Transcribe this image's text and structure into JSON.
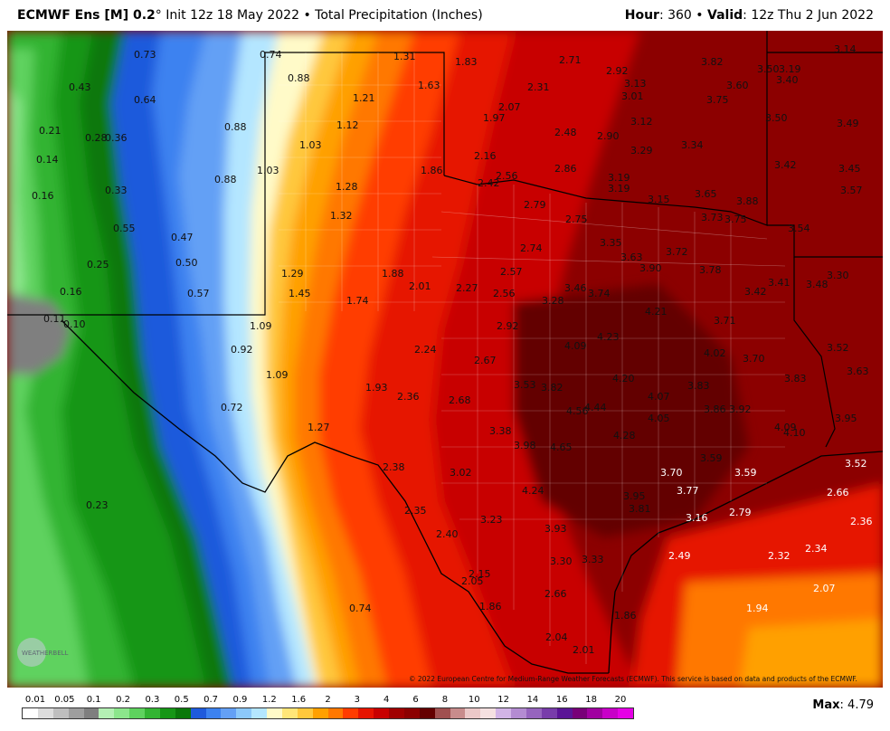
{
  "header": {
    "model": "ECMWF Ens [M] 0.2",
    "degree": "°",
    "init": "Init 12z 18 May 2022",
    "bullet": "•",
    "product": "Total Precipitation (Inches)",
    "hour_label": "Hour",
    "hour_value": ": 360",
    "valid_label": "Valid",
    "valid_value": ": 12z Thu 2 Jun 2022"
  },
  "copyright": "© 2022 European Centre for Medium-Range Weather Forecasts (ECMWF). This service is based on data and products of the ECMWF.",
  "logo_text": "WEATHERBELL",
  "legend": {
    "labels": [
      "0.01",
      "0.05",
      "0.1",
      "0.2",
      "0.3",
      "0.5",
      "0.7",
      "0.9",
      "1.2",
      "1.6",
      "2",
      "3",
      "4",
      "6",
      "8",
      "10",
      "12",
      "14",
      "16",
      "18",
      "20"
    ],
    "colors": [
      "#ffffff",
      "#dcdcdc",
      "#bebebe",
      "#9e9e9e",
      "#7f7f7f",
      "#b4f0b4",
      "#8ce68c",
      "#5ed25e",
      "#32b432",
      "#169616",
      "#0a780a",
      "#1e5adc",
      "#3c82f0",
      "#64a0f5",
      "#8cc8fa",
      "#b4e6ff",
      "#fffac8",
      "#ffe678",
      "#ffc83c",
      "#ffa000",
      "#ff7800",
      "#ff3c00",
      "#e61400",
      "#c80000",
      "#a00000",
      "#8c0000",
      "#640000",
      "#a05050",
      "#c88c8c",
      "#ebc8c8",
      "#f5e1e1",
      "#d2b4e6",
      "#b48cd2",
      "#9664be",
      "#783caa",
      "#5a1496",
      "#780078",
      "#a000a0",
      "#c800c8",
      "#e600e6"
    ],
    "max_label": "Max",
    "max_value": ": 4.79"
  },
  "map_values": [
    {
      "t": "0.73"
    },
    {
      "t": "0.74"
    },
    {
      "t": "1.31"
    },
    {
      "t": "1.83"
    },
    {
      "t": "2.71"
    },
    {
      "t": "3.82"
    },
    {
      "t": "3.14"
    },
    {
      "t": "0.43"
    },
    {
      "t": "0.64"
    },
    {
      "t": "0.88"
    },
    {
      "t": "1.21"
    },
    {
      "t": "1.63"
    },
    {
      "t": "2.31"
    },
    {
      "t": "2.92"
    },
    {
      "t": "3.13"
    },
    {
      "t": "3.01"
    },
    {
      "t": "3.60"
    },
    {
      "t": "3.50"
    },
    {
      "t": "3.19"
    },
    {
      "t": "3.40"
    },
    {
      "t": "0.21"
    },
    {
      "t": "0.28"
    },
    {
      "t": "0.36"
    },
    {
      "t": "0.88"
    },
    {
      "t": "1.12"
    },
    {
      "t": "1.97"
    },
    {
      "t": "2.07"
    },
    {
      "t": "2.48"
    },
    {
      "t": "2.90"
    },
    {
      "t": "3.12"
    },
    {
      "t": "3.75"
    },
    {
      "t": "3.50"
    },
    {
      "t": "3.49"
    },
    {
      "t": "0.14"
    },
    {
      "t": "1.03"
    },
    {
      "t": "2.16"
    },
    {
      "t": "3.29"
    },
    {
      "t": "3.34"
    },
    {
      "t": "3.42"
    },
    {
      "t": "3.45"
    },
    {
      "t": "0.16"
    },
    {
      "t": "0.33"
    },
    {
      "t": "0.88"
    },
    {
      "t": "1.03"
    },
    {
      "t": "1.86"
    },
    {
      "t": "2.42"
    },
    {
      "t": "2.56"
    },
    {
      "t": "2.86"
    },
    {
      "t": "3.19"
    },
    {
      "t": "3.19"
    },
    {
      "t": "3.15"
    },
    {
      "t": "3.65"
    },
    {
      "t": "3.88"
    },
    {
      "t": "3.57"
    },
    {
      "t": "1.28"
    },
    {
      "t": "2.79"
    },
    {
      "t": "2.75"
    },
    {
      "t": "3.73"
    },
    {
      "t": "3.75"
    },
    {
      "t": "0.55"
    },
    {
      "t": "0.47"
    },
    {
      "t": "1.32"
    },
    {
      "t": "3.54"
    },
    {
      "t": "0.25"
    },
    {
      "t": "0.50"
    },
    {
      "t": "2.74"
    },
    {
      "t": "3.35"
    },
    {
      "t": "3.63"
    },
    {
      "t": "3.72"
    },
    {
      "t": "1.29"
    },
    {
      "t": "1.88"
    },
    {
      "t": "2.57"
    },
    {
      "t": "3.90"
    },
    {
      "t": "3.78"
    },
    {
      "t": "3.30"
    },
    {
      "t": "0.16"
    },
    {
      "t": "0.57"
    },
    {
      "t": "1.45"
    },
    {
      "t": "2.01"
    },
    {
      "t": "2.27"
    },
    {
      "t": "2.56"
    },
    {
      "t": "3.28"
    },
    {
      "t": "3.46"
    },
    {
      "t": "3.74"
    },
    {
      "t": "3.42"
    },
    {
      "t": "3.41"
    },
    {
      "t": "3.48"
    },
    {
      "t": "1.74"
    },
    {
      "t": "4.21"
    },
    {
      "t": "0.11"
    },
    {
      "t": "0.10"
    },
    {
      "t": "1.09"
    },
    {
      "t": "2.92"
    },
    {
      "t": "4.23"
    },
    {
      "t": "3.71"
    },
    {
      "t": "0.92"
    },
    {
      "t": "2.24"
    },
    {
      "t": "4.09"
    },
    {
      "t": "4.02"
    },
    {
      "t": "3.70"
    },
    {
      "t": "3.52"
    },
    {
      "t": "2.67"
    },
    {
      "t": "3.63"
    },
    {
      "t": "1.09"
    },
    {
      "t": "4.20"
    },
    {
      "t": "3.83"
    },
    {
      "t": "1.93"
    },
    {
      "t": "3.53"
    },
    {
      "t": "3.82"
    },
    {
      "t": "3.83"
    },
    {
      "t": "2.36"
    },
    {
      "t": "2.68"
    },
    {
      "t": "4.07"
    },
    {
      "t": "0.72"
    },
    {
      "t": "4.56"
    },
    {
      "t": "4.44"
    },
    {
      "t": "3.86"
    },
    {
      "t": "3.92"
    },
    {
      "t": "4.05"
    },
    {
      "t": "3.95"
    },
    {
      "t": "1.27"
    },
    {
      "t": "4.09"
    },
    {
      "t": "4.10"
    },
    {
      "t": "3.38"
    },
    {
      "t": "4.28"
    },
    {
      "t": "3.98"
    },
    {
      "t": "4.65"
    },
    {
      "t": "3.59"
    },
    {
      "t": "3.52"
    },
    {
      "t": "2.38"
    },
    {
      "t": "3.02"
    },
    {
      "t": "3.70"
    },
    {
      "t": "3.59"
    },
    {
      "t": "4.24"
    },
    {
      "t": "3.77"
    },
    {
      "t": "2.66"
    },
    {
      "t": "0.23"
    },
    {
      "t": "3.95"
    },
    {
      "t": "2.35"
    },
    {
      "t": "3.81"
    },
    {
      "t": "3.23"
    },
    {
      "t": "3.16"
    },
    {
      "t": "2.79"
    },
    {
      "t": "2.36"
    },
    {
      "t": "3.93"
    },
    {
      "t": "2.40"
    },
    {
      "t": "2.34"
    },
    {
      "t": "3.30"
    },
    {
      "t": "3.33"
    },
    {
      "t": "2.49"
    },
    {
      "t": "2.32"
    },
    {
      "t": "2.15"
    },
    {
      "t": "2.05"
    },
    {
      "t": "2.66"
    },
    {
      "t": "2.07"
    },
    {
      "t": "0.74"
    },
    {
      "t": "1.86"
    },
    {
      "t": "1.94"
    },
    {
      "t": "1.86"
    },
    {
      "t": "2.04"
    },
    {
      "t": "2.01"
    }
  ]
}
